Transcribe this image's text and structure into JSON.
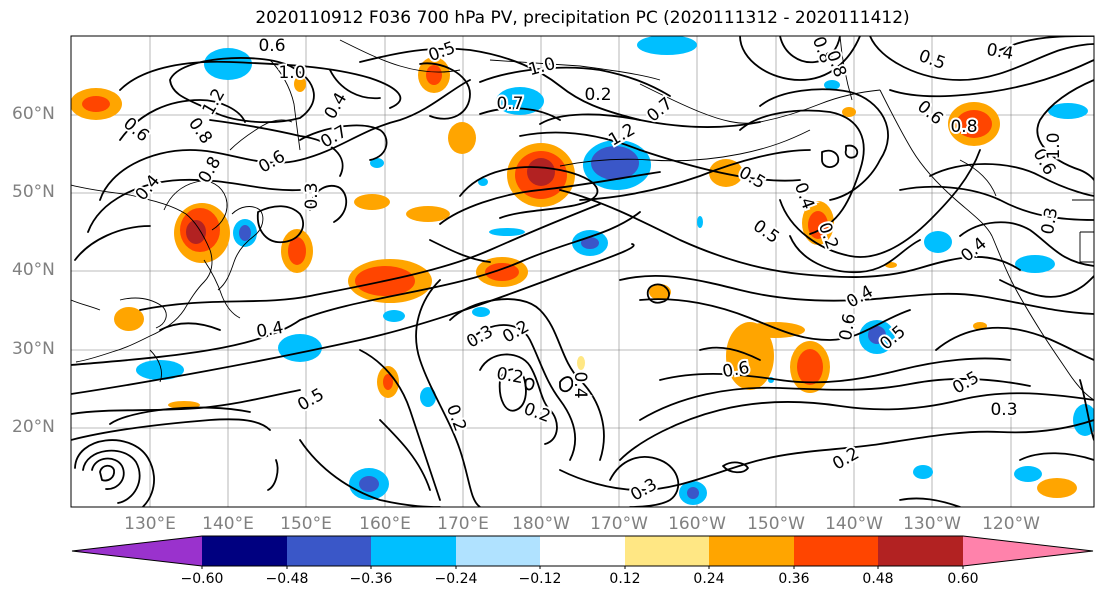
{
  "title": "2020110912 F036 700 hPa PV, precipitation PC (2020111312 - 2020111412)",
  "lat_labels": [
    "60°N",
    "50°N",
    "40°N",
    "30°N",
    "20°N"
  ],
  "lon_labels": [
    "130°E",
    "140°E",
    "150°E",
    "160°E",
    "170°E",
    "180°W",
    "170°W",
    "160°W",
    "150°W",
    "140°W",
    "130°W",
    "120°W"
  ],
  "colorbar": {
    "ticks": [
      "−0.60",
      "−0.48",
      "−0.36",
      "−0.24",
      "−0.12",
      "0.12",
      "0.24",
      "0.36",
      "0.48",
      "0.60"
    ],
    "colors": [
      "#9a32cd",
      "#000080",
      "#3a57c8",
      "#00bfff",
      "#b0e2ff",
      "#ffffff",
      "#ffe784",
      "#ffa500",
      "#ff4500",
      "#b22222",
      "#ff82ab"
    ]
  },
  "contour_labels": [
    "0.6",
    "1.0",
    "0.5",
    "1.0",
    "0.8",
    "0.4",
    "0.8",
    "0.6",
    "1.2",
    "0.8",
    "0.7",
    "0.2",
    "0.4",
    "0.8",
    "0.6",
    "0.7",
    "1.2",
    "0.7",
    "0.6",
    "0.3",
    "0.5",
    "0.5",
    "0.4",
    "0.4",
    "0.6",
    "0.4",
    "0.2",
    "0.3",
    "0.5",
    "0.6",
    "0.4",
    "0.3",
    "0.5",
    "0.4",
    "0.3",
    "0.6",
    "0.5",
    "0.2",
    "0.4",
    "0.2",
    "0.2",
    "0.3",
    "0.5",
    "0.2",
    "0.2",
    "0.8",
    "1.0"
  ],
  "colors": {
    "grid": "#7f7f7f",
    "contour": "#000000",
    "coast": "#000000",
    "axis_label": "#808080"
  }
}
